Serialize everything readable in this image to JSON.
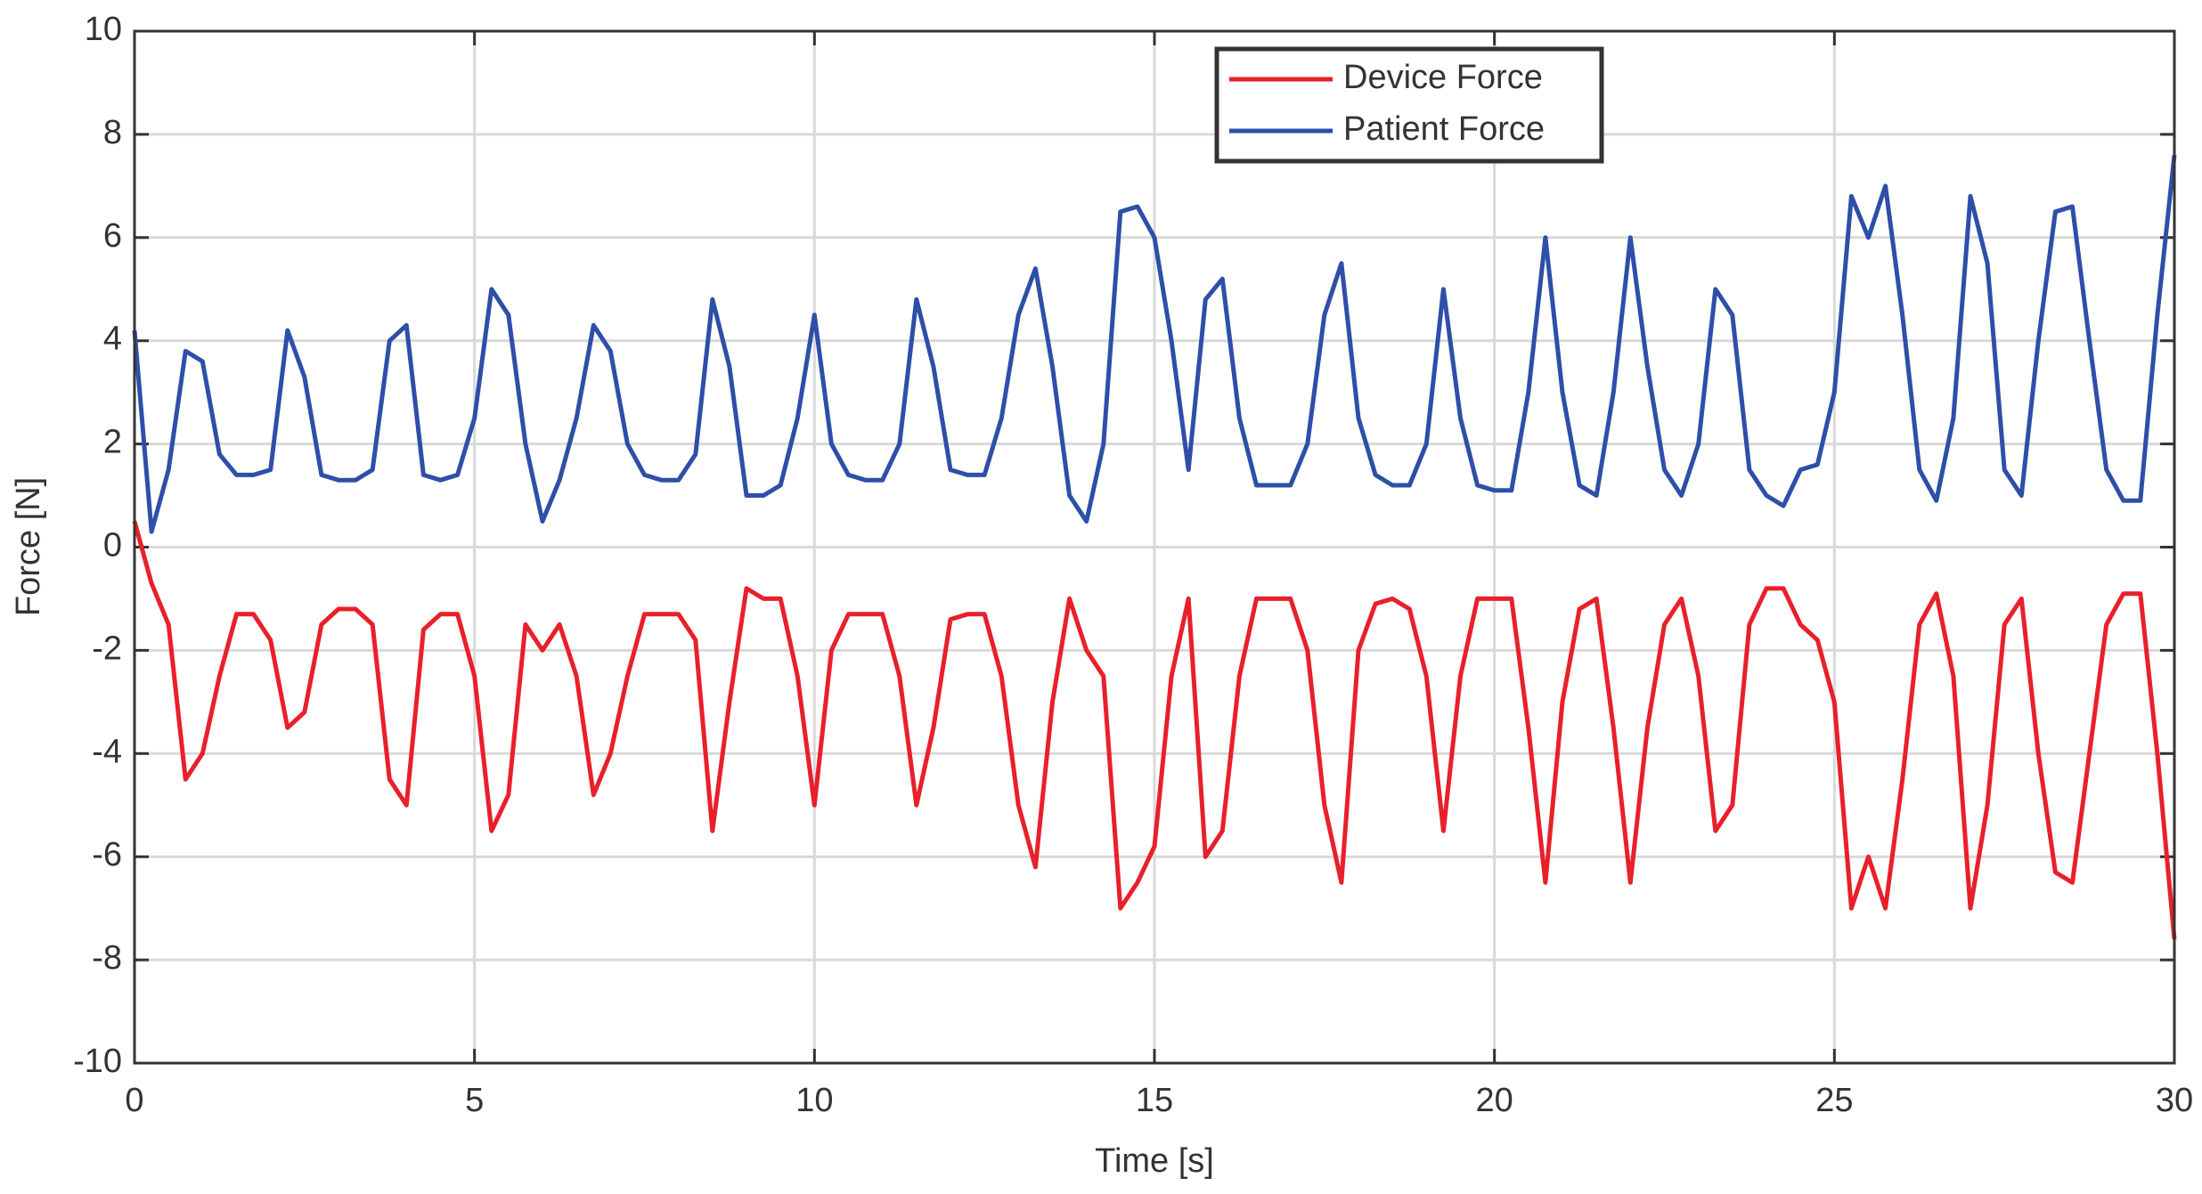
{
  "chart_data": {
    "type": "line",
    "xlabel": "Time [s]",
    "ylabel": "Force [N]",
    "xlim": [
      0,
      30
    ],
    "ylim": [
      -10,
      10
    ],
    "xticks": [
      0,
      5,
      10,
      15,
      20,
      25,
      30
    ],
    "yticks": [
      -10,
      -8,
      -6,
      -4,
      -2,
      0,
      2,
      4,
      6,
      8,
      10
    ],
    "grid": true,
    "legend": "north",
    "x": [
      0,
      0.25,
      0.5,
      0.75,
      1,
      1.25,
      1.5,
      1.75,
      2,
      2.25,
      2.5,
      2.75,
      3,
      3.25,
      3.5,
      3.75,
      4,
      4.25,
      4.5,
      4.75,
      5,
      5.25,
      5.5,
      5.75,
      6,
      6.25,
      6.5,
      6.75,
      7,
      7.25,
      7.5,
      7.75,
      8,
      8.25,
      8.5,
      8.75,
      9,
      9.25,
      9.5,
      9.75,
      10,
      10.25,
      10.5,
      10.75,
      11,
      11.25,
      11.5,
      11.75,
      12,
      12.25,
      12.5,
      12.75,
      13,
      13.25,
      13.5,
      13.75,
      14,
      14.25,
      14.5,
      14.75,
      15,
      15.25,
      15.5,
      15.75,
      16,
      16.25,
      16.5,
      16.75,
      17,
      17.25,
      17.5,
      17.75,
      18,
      18.25,
      18.5,
      18.75,
      19,
      19.25,
      19.5,
      19.75,
      20,
      20.25,
      20.5,
      20.75,
      21,
      21.25,
      21.5,
      21.75,
      22,
      22.25,
      22.5,
      22.75,
      23,
      23.25,
      23.5,
      23.75,
      24,
      24.25,
      24.5,
      24.75,
      25,
      25.25,
      25.5,
      25.75,
      26,
      26.25,
      26.5,
      26.75,
      27,
      27.25,
      27.5,
      27.75,
      28,
      28.25,
      28.5,
      28.75,
      29,
      29.25,
      29.5,
      29.75,
      30
    ],
    "series": [
      {
        "name": "Device Force",
        "color": "#e8202a",
        "values": [
          0.5,
          -0.7,
          -1.5,
          -4.5,
          -4.0,
          -2.5,
          -1.3,
          -1.3,
          -1.8,
          -3.5,
          -3.2,
          -1.5,
          -1.2,
          -1.2,
          -1.5,
          -4.5,
          -5.0,
          -1.6,
          -1.3,
          -1.3,
          -2.5,
          -5.5,
          -4.8,
          -1.5,
          -2.0,
          -1.5,
          -2.5,
          -4.8,
          -4.0,
          -2.5,
          -1.3,
          -1.3,
          -1.3,
          -1.8,
          -5.5,
          -3.0,
          -0.8,
          -1.0,
          -1.0,
          -2.5,
          -5.0,
          -2.0,
          -1.3,
          -1.3,
          -1.3,
          -2.5,
          -5.0,
          -3.5,
          -1.4,
          -1.3,
          -1.3,
          -2.5,
          -5.0,
          -6.2,
          -3.0,
          -1.0,
          -2.0,
          -2.5,
          -7.0,
          -6.5,
          -5.8,
          -2.5,
          -1.0,
          -6.0,
          -5.5,
          -2.5,
          -1.0,
          -1.0,
          -1.0,
          -2.0,
          -5.0,
          -6.5,
          -2.0,
          -1.1,
          -1.0,
          -1.2,
          -2.5,
          -5.5,
          -2.5,
          -1.0,
          -1.0,
          -1.0,
          -3.5,
          -6.5,
          -3.0,
          -1.2,
          -1.0,
          -3.5,
          -6.5,
          -3.5,
          -1.5,
          -1.0,
          -2.5,
          -5.5,
          -5.0,
          -1.5,
          -0.8,
          -0.8,
          -1.5,
          -1.8,
          -3.0,
          -7.0,
          -6.0,
          -7.0,
          -4.5,
          -1.5,
          -0.9,
          -2.5,
          -7.0,
          -5.0,
          -1.5,
          -1.0,
          -4.0,
          -6.3,
          -6.5,
          -4.0,
          -1.5,
          -0.9,
          -0.9,
          -4.0,
          -7.6
        ]
      },
      {
        "name": "Patient Force",
        "color": "#2e4fa8",
        "values": [
          4.2,
          0.3,
          1.5,
          3.8,
          3.6,
          1.8,
          1.4,
          1.4,
          1.5,
          4.2,
          3.3,
          1.4,
          1.3,
          1.3,
          1.5,
          4.0,
          4.3,
          1.4,
          1.3,
          1.4,
          2.5,
          5.0,
          4.5,
          2.0,
          0.5,
          1.3,
          2.5,
          4.3,
          3.8,
          2.0,
          1.4,
          1.3,
          1.3,
          1.8,
          4.8,
          3.5,
          1.0,
          1.0,
          1.2,
          2.5,
          4.5,
          2.0,
          1.4,
          1.3,
          1.3,
          2.0,
          4.8,
          3.5,
          1.5,
          1.4,
          1.4,
          2.5,
          4.5,
          5.4,
          3.5,
          1.0,
          0.5,
          2.0,
          6.5,
          6.6,
          6.0,
          4.0,
          1.5,
          4.8,
          5.2,
          2.5,
          1.2,
          1.2,
          1.2,
          2.0,
          4.5,
          5.5,
          2.5,
          1.4,
          1.2,
          1.2,
          2.0,
          5.0,
          2.5,
          1.2,
          1.1,
          1.1,
          3.0,
          6.0,
          3.0,
          1.2,
          1.0,
          3.0,
          6.0,
          3.5,
          1.5,
          1.0,
          2.0,
          5.0,
          4.5,
          1.5,
          1.0,
          0.8,
          1.5,
          1.6,
          3.0,
          6.8,
          6.0,
          7.0,
          4.5,
          1.5,
          0.9,
          2.5,
          6.8,
          5.5,
          1.5,
          1.0,
          4.0,
          6.5,
          6.6,
          4.0,
          1.5,
          0.9,
          0.9,
          4.5,
          7.6
        ]
      }
    ]
  }
}
